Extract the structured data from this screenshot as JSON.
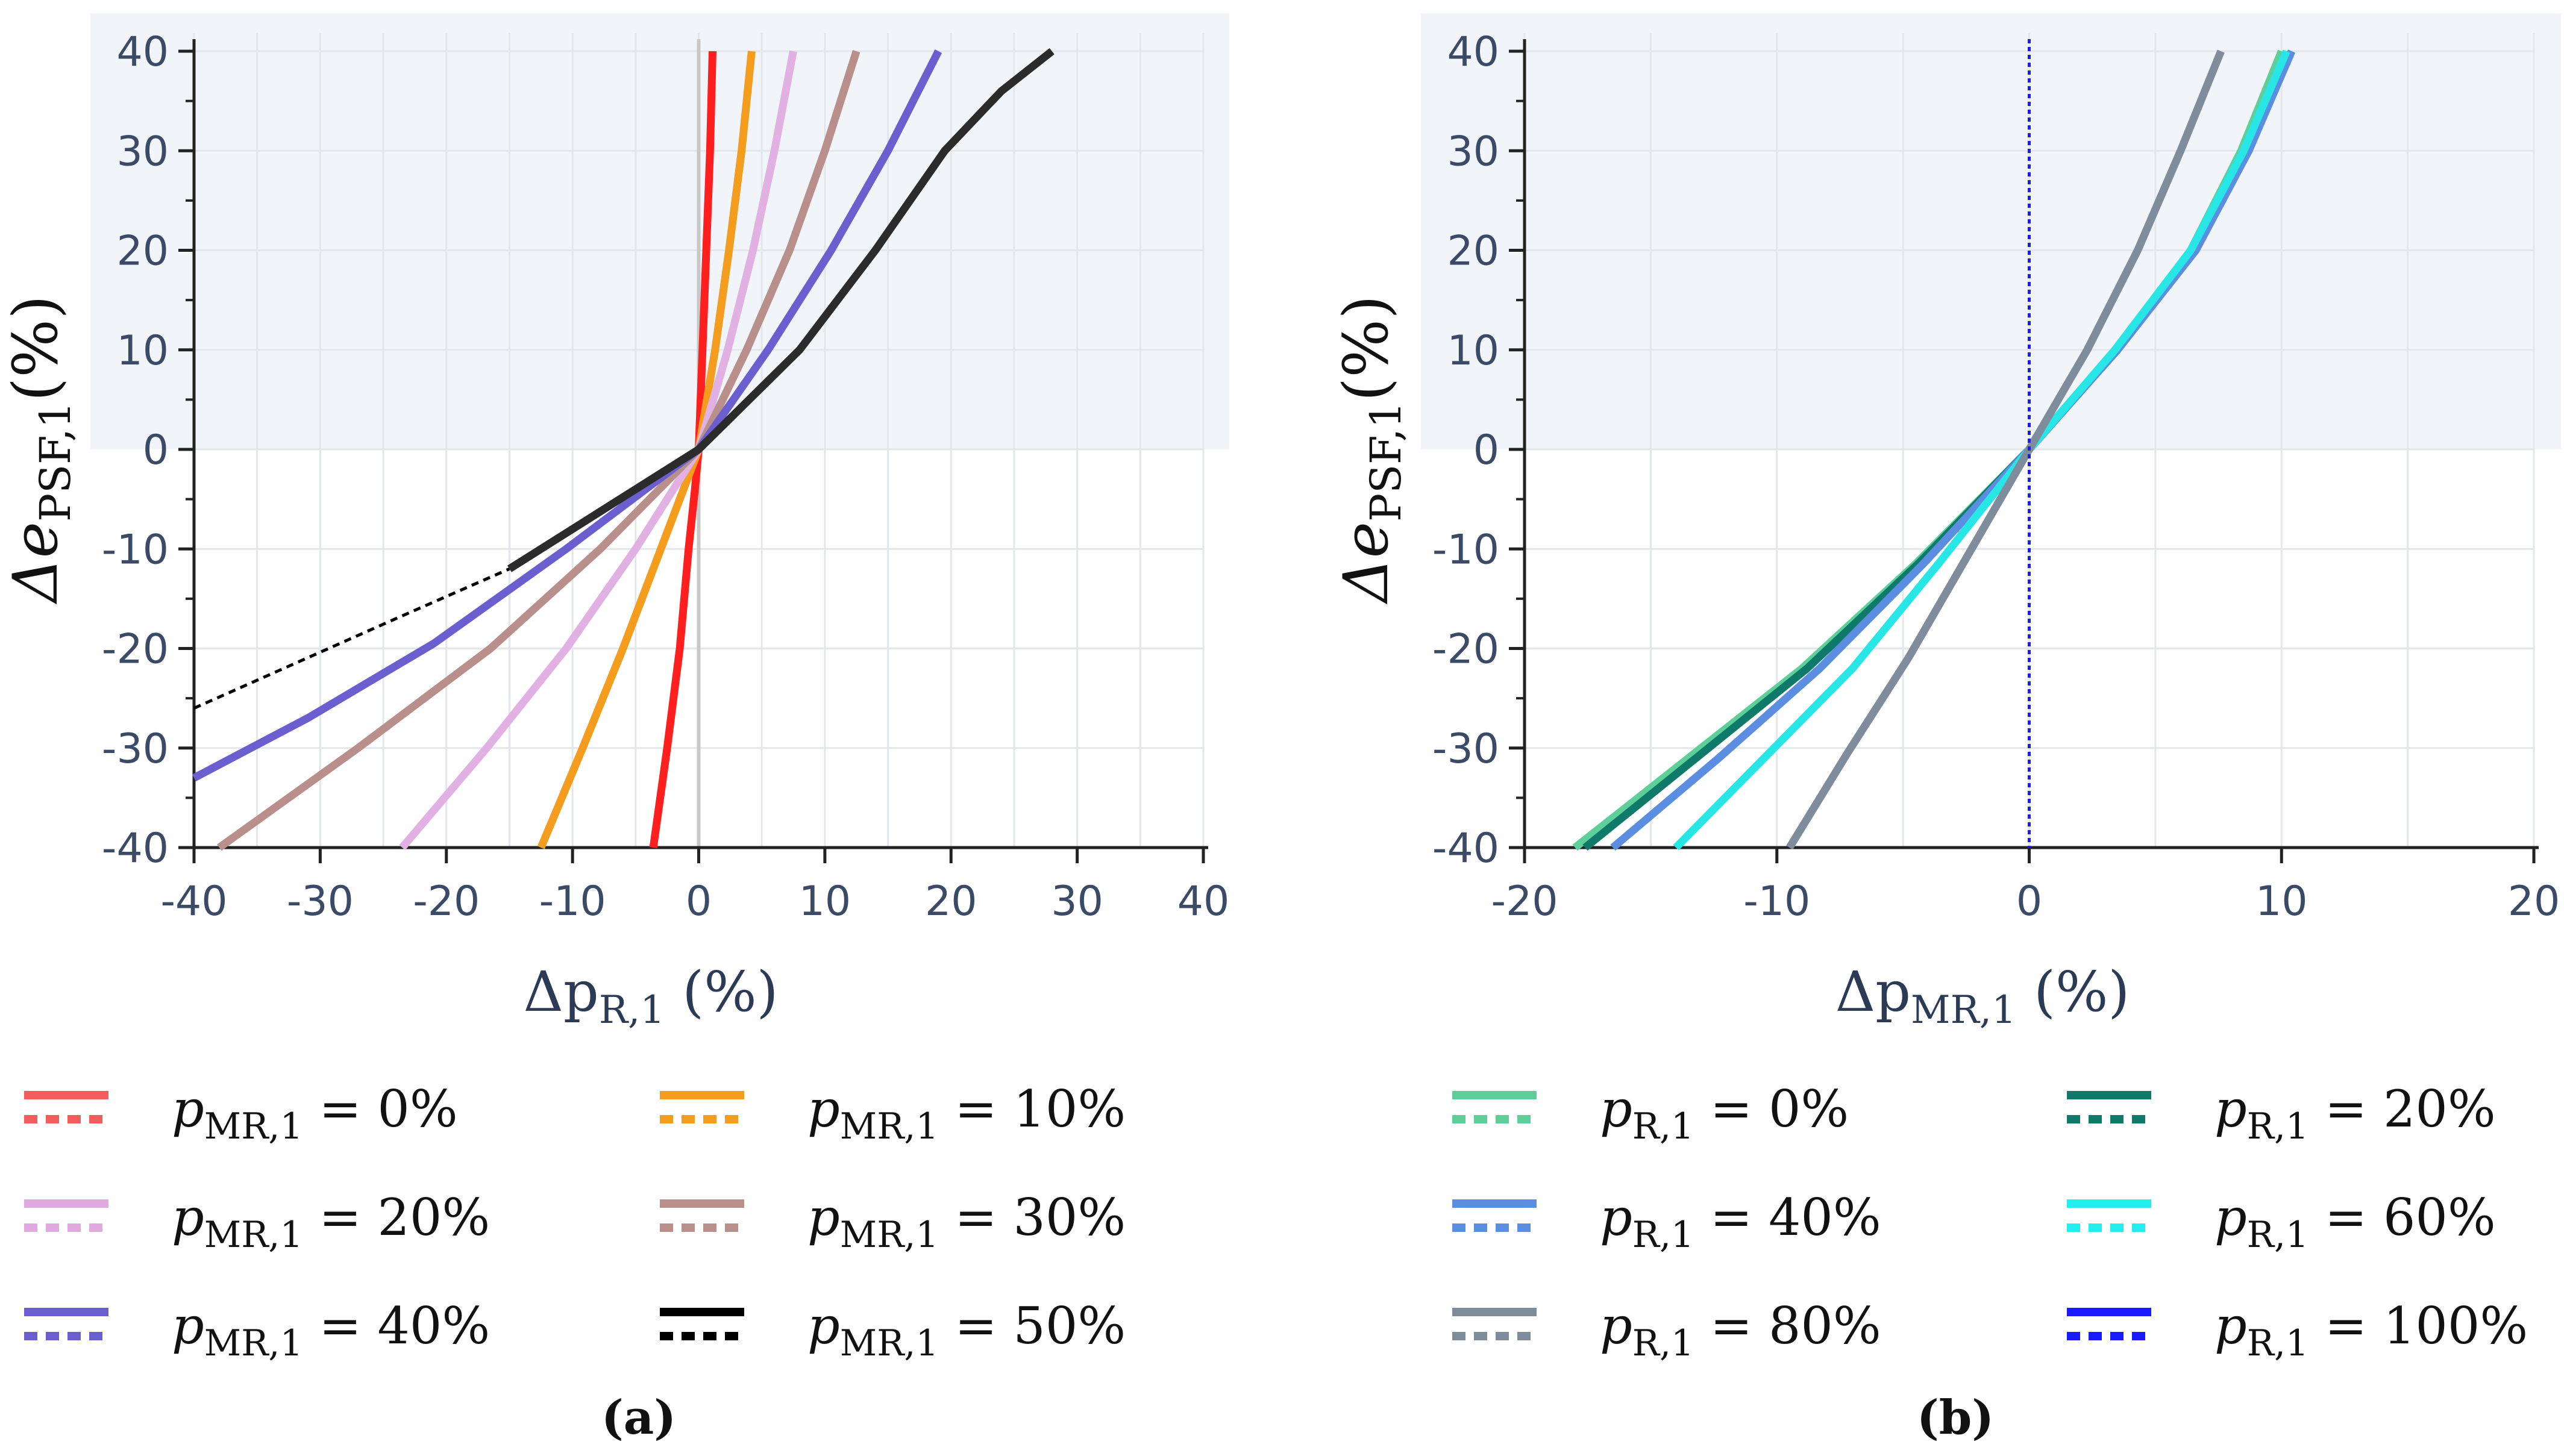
{
  "chart_data": [
    {
      "type": "line",
      "panel_label": "(a)",
      "xlabel": {
        "base": "Δp",
        "sub": "R,1",
        "unit": " (%)"
      },
      "ylabel": {
        "base": "Δe",
        "sub": "PSF,1",
        "unit": "(%)"
      },
      "xlim": [
        -40,
        40
      ],
      "ylim": [
        -40,
        40
      ],
      "xticks": [
        "-40",
        "-30",
        "-20",
        "-10",
        "0",
        "10",
        "20",
        "30",
        "40"
      ],
      "yticks": [
        "40",
        "30",
        "20",
        "10",
        "0",
        "-10",
        "-20",
        "-30",
        "-40"
      ],
      "shaded_region": {
        "y_from": 0,
        "y_to": 40
      },
      "zero_line_color": "#c8c8c8",
      "series": [
        {
          "name": "p_MR,1 = 0%",
          "color": "#ff1f1f",
          "legend_color": "#f25c5c",
          "label_var": "p",
          "label_sub": "MR,1",
          "label_val": " = 0%",
          "x": [
            -3.6,
            -2.5,
            -1.5,
            -0.8,
            -0.3,
            0,
            0.3,
            0.6,
            0.9,
            1.1
          ],
          "y": [
            -40,
            -30,
            -20,
            -10,
            -4,
            0,
            10,
            20,
            30,
            40
          ]
        },
        {
          "name": "p_MR,1 = 10%",
          "color": "#f39c1e",
          "legend_color": "#f39c1e",
          "label_var": "p",
          "label_sub": "MR,1",
          "label_val": " = 10%",
          "x": [
            -12.5,
            -9.2,
            -6.0,
            -3.0,
            0,
            1.3,
            2.4,
            3.4,
            4.2
          ],
          "y": [
            -40,
            -30,
            -20,
            -10,
            0,
            10,
            20,
            30,
            40
          ]
        },
        {
          "name": "p_MR,1 = 20%",
          "color": "#e2b1e4",
          "legend_color": "#e0a9e0",
          "label_var": "p",
          "label_sub": "MR,1",
          "label_val": " = 20%",
          "x": [
            -23.5,
            -16.8,
            -10.5,
            -5.0,
            0,
            2.3,
            4.3,
            6.0,
            7.5
          ],
          "y": [
            -40,
            -30,
            -20,
            -10,
            0,
            10,
            20,
            30,
            40
          ]
        },
        {
          "name": "p_MR,1 = 30%",
          "color": "#b88f8a",
          "legend_color": "#b88f8a",
          "label_var": "p",
          "label_sub": "MR,1",
          "label_val": " = 30%",
          "x": [
            -38,
            -27,
            -16.5,
            -7.8,
            0,
            3.8,
            7.2,
            10.0,
            12.5
          ],
          "y": [
            -40,
            -30,
            -20,
            -10,
            0,
            10,
            20,
            30,
            40
          ]
        },
        {
          "name": "p_MR,1 = 40%",
          "color": "#6b5fcf",
          "legend_color": "#6b5fcf",
          "label_var": "p",
          "label_sub": "MR,1",
          "label_val": " = 40%",
          "x": [
            -40,
            -31,
            -21,
            -10.5,
            0,
            5.5,
            10.5,
            15.0,
            19.0
          ],
          "y": [
            -33,
            -27,
            -19.5,
            -10,
            0,
            10,
            20,
            30,
            40
          ]
        },
        {
          "name": "p_MR,1 = 50%",
          "color": "#2b2b2b",
          "legend_color": "#000000",
          "label_var": "p",
          "label_sub": "MR,1",
          "label_val": " = 50%",
          "x": [
            -15,
            -10,
            -5,
            0,
            8,
            14,
            19.5,
            24,
            28
          ],
          "y": [
            -12,
            -8,
            -4,
            0,
            10,
            20,
            30,
            36,
            40
          ],
          "dashed_x": [
            -40,
            -32,
            -24,
            -15
          ],
          "dashed_y": [
            -26,
            -21.5,
            -17,
            -12
          ]
        }
      ]
    },
    {
      "type": "line",
      "panel_label": "(b)",
      "xlabel": {
        "base": "Δp",
        "sub": "MR,1",
        "unit": " (%)"
      },
      "ylabel": {
        "base": "Δe",
        "sub": "PSF,1",
        "unit": "(%)"
      },
      "xlim": [
        -20,
        20
      ],
      "ylim": [
        -40,
        40
      ],
      "xticks": [
        "-20",
        "-10",
        "0",
        "10",
        "20"
      ],
      "yticks": [
        "40",
        "30",
        "20",
        "10",
        "0",
        "-10",
        "-20",
        "-30",
        "-40"
      ],
      "shaded_region": {
        "y_from": 0,
        "y_to": 40
      },
      "zero_line_color": "#1a1aff",
      "series": [
        {
          "name": "p_R,1 = 0%",
          "color": "#5fcf9a",
          "legend_color": "#5fcf9a",
          "label_var": "p",
          "label_sub": "R,1",
          "label_val": " = 0%",
          "x": [
            -18,
            -13.5,
            -9,
            -4.5,
            0,
            3.4,
            6.4,
            8.4,
            10.0
          ],
          "y": [
            -40,
            -31,
            -22,
            -11.5,
            0,
            10,
            20,
            30,
            40
          ]
        },
        {
          "name": "p_R,1 = 20%",
          "color": "#0f7a6a",
          "legend_color": "#0f7a6a",
          "label_var": "p",
          "label_sub": "R,1",
          "label_val": " = 20%",
          "x": [
            -17.6,
            -13.2,
            -8.8,
            -4.4,
            0,
            3.5,
            6.6,
            8.7,
            10.4
          ],
          "y": [
            -40,
            -31,
            -22,
            -11.5,
            0,
            10,
            20,
            30,
            40
          ]
        },
        {
          "name": "p_R,1 = 40%",
          "color": "#5b8de0",
          "legend_color": "#5b8de0",
          "label_var": "p",
          "label_sub": "R,1",
          "label_val": " = 40%",
          "x": [
            -16.5,
            -12.3,
            -8.3,
            -4.2,
            0,
            3.5,
            6.6,
            8.7,
            10.4
          ],
          "y": [
            -40,
            -31,
            -22,
            -11.5,
            0,
            10,
            20,
            30,
            40
          ]
        },
        {
          "name": "p_R,1 = 60%",
          "color": "#29e6e6",
          "legend_color": "#22eeee",
          "label_var": "p",
          "label_sub": "R,1",
          "label_val": " = 60%",
          "x": [
            -14,
            -10.5,
            -7,
            -3.6,
            0,
            3.4,
            6.4,
            8.5,
            10.2
          ],
          "y": [
            -40,
            -31,
            -22,
            -11.5,
            0,
            10,
            20,
            30,
            40
          ]
        },
        {
          "name": "p_R,1 = 80%",
          "color": "#7f8c9c",
          "legend_color": "#7f8c9c",
          "label_var": "p",
          "label_sub": "R,1",
          "label_val": " = 80%",
          "x": [
            -9.5,
            -7.2,
            -4.8,
            -2.4,
            0,
            2.3,
            4.3,
            6.0,
            7.6
          ],
          "y": [
            -40,
            -30.5,
            -21,
            -10.5,
            0,
            10,
            20,
            30,
            40
          ]
        },
        {
          "name": "p_R,1 = 100%",
          "color": "#1a1aff",
          "legend_color": "#1a1aff",
          "label_var": "p",
          "label_sub": "R,1",
          "label_val": " = 100%",
          "x": [],
          "y": []
        }
      ]
    }
  ]
}
